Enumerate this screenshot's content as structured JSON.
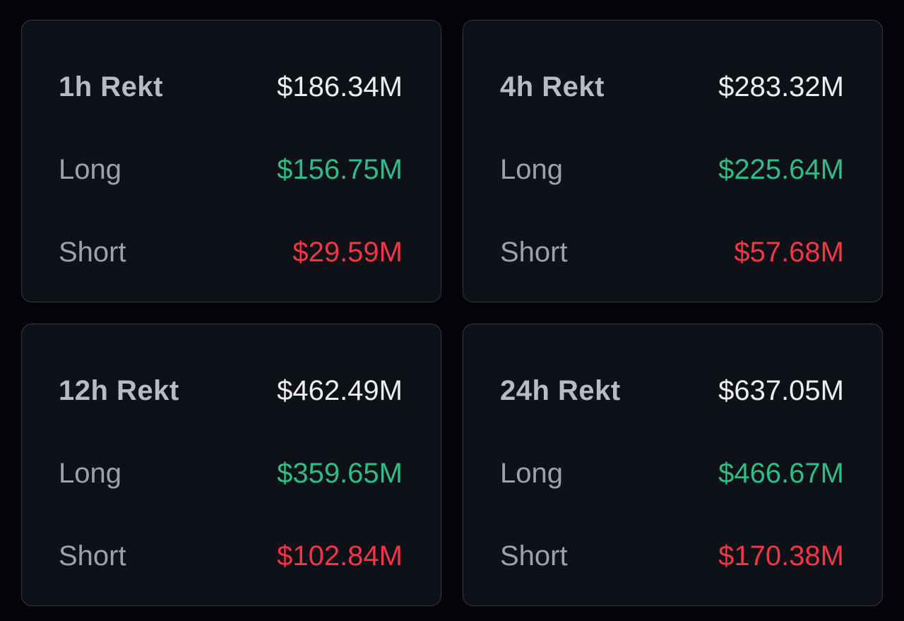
{
  "page": {
    "background": "#040408"
  },
  "card_style": {
    "background": "#0e1118",
    "border": "#363941"
  },
  "colors": {
    "title": "#b8bbc1",
    "total": "#edeef0",
    "label": "#9ea1a8",
    "long": "#2ebd85",
    "short": "#f23645"
  },
  "labels": {
    "long": "Long",
    "short": "Short"
  },
  "cards": [
    {
      "title": "1h Rekt",
      "total": "$186.34M",
      "long": "$156.75M",
      "short": "$29.59M"
    },
    {
      "title": "4h Rekt",
      "total": "$283.32M",
      "long": "$225.64M",
      "short": "$57.68M"
    },
    {
      "title": "12h Rekt",
      "total": "$462.49M",
      "long": "$359.65M",
      "short": "$102.84M"
    },
    {
      "title": "24h Rekt",
      "total": "$637.05M",
      "long": "$466.67M",
      "short": "$170.38M"
    }
  ]
}
